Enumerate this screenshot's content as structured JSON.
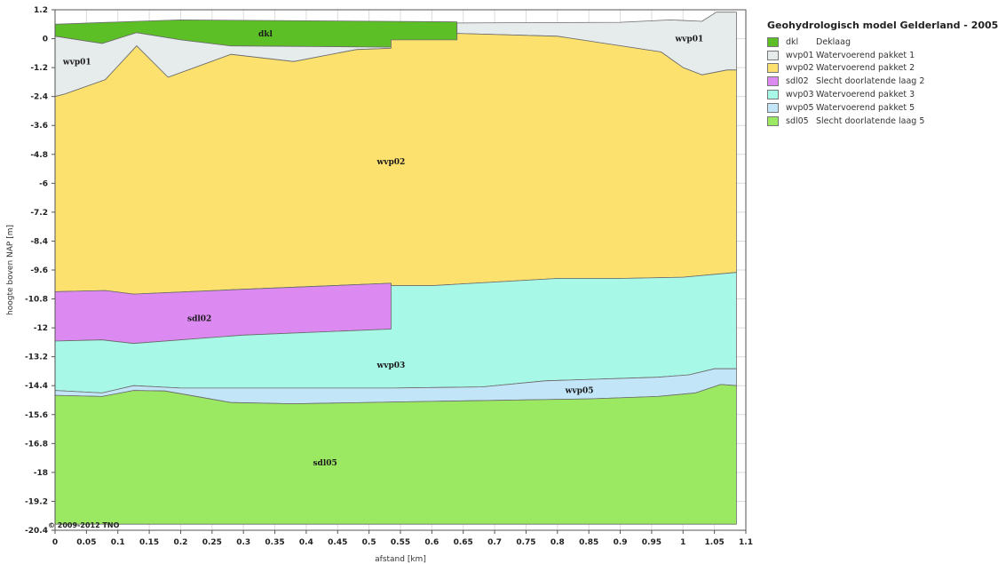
{
  "chart_data": {
    "type": "area",
    "title": "",
    "xlabel": "afstand [km]",
    "ylabel": "hoogte boven NAP [m]",
    "xlim": [
      0,
      1.1
    ],
    "ylim": [
      -20.4,
      1.2
    ],
    "grid": true,
    "x_ticks": [
      "0",
      "0.05",
      "0.1",
      "0.15",
      "0.2",
      "0.25",
      "0.3",
      "0.35",
      "0.4",
      "0.45",
      "0.5",
      "0.55",
      "0.6",
      "0.65",
      "0.7",
      "0.75",
      "0.8",
      "0.85",
      "0.9",
      "0.95",
      "1",
      "1.05",
      "1.1"
    ],
    "y_ticks": [
      "1.2",
      "0",
      "-1.2",
      "-2.4",
      "-3.6",
      "-4.8",
      "-6",
      "-7.2",
      "-8.4",
      "-9.6",
      "-10.8",
      "-12",
      "-13.2",
      "-14.4",
      "-15.6",
      "-16.8",
      "-18",
      "-19.2",
      "-20.4"
    ],
    "legend_position": "top-right, outside plot",
    "layers": [
      {
        "code": "dkl",
        "name": "Deklaag",
        "color": "#5cbf26",
        "label_at": [
          0.335,
          0.2
        ],
        "top": [
          [
            0,
            0.6
          ],
          [
            0.13,
            0.72
          ],
          [
            0.2,
            0.78
          ],
          [
            0.64,
            0.7
          ]
        ],
        "bottom": [
          [
            0,
            0.1
          ],
          [
            0.075,
            -0.2
          ],
          [
            0.13,
            0.25
          ],
          [
            0.2,
            -0.05
          ],
          [
            0.28,
            -0.3
          ],
          [
            0.535,
            -0.35
          ],
          [
            0.535,
            -0.05
          ],
          [
            0.64,
            -0.05
          ]
        ]
      },
      {
        "code": "wvp01",
        "name": "Watervoerend pakket 1",
        "color": "#e6ebec",
        "label_at": [
          0.035,
          -0.95
        ],
        "top": [
          [
            0,
            0.1
          ],
          [
            0.075,
            -0.2
          ],
          [
            0.13,
            0.25
          ],
          [
            0.2,
            -0.05
          ],
          [
            0.28,
            -0.3
          ],
          [
            0.535,
            -0.35
          ],
          [
            0.535,
            -0.05
          ],
          [
            0.64,
            -0.05
          ]
        ],
        "bottom": [
          [
            0,
            -2.4
          ],
          [
            0.015,
            -2.3
          ],
          [
            0.08,
            -1.7
          ],
          [
            0.13,
            -0.3
          ],
          [
            0.18,
            -1.6
          ],
          [
            0.28,
            -0.65
          ],
          [
            0.38,
            -0.95
          ],
          [
            0.48,
            -0.45
          ],
          [
            0.535,
            -0.4
          ],
          [
            0.535,
            -0.05
          ],
          [
            0.64,
            -0.05
          ]
        ]
      },
      {
        "code": "wvp01",
        "name": "Watervoerend pakket 1",
        "color": "#e6ebec",
        "label_at": [
          1.01,
          0.0
        ],
        "hide_legend": true,
        "top": [
          [
            0.64,
            0.65
          ],
          [
            0.9,
            0.68
          ],
          [
            0.98,
            0.78
          ],
          [
            1.03,
            0.72
          ],
          [
            1.053,
            1.1
          ],
          [
            1.085,
            1.1
          ]
        ],
        "bottom": [
          [
            0.64,
            0.22
          ],
          [
            0.8,
            0.1
          ],
          [
            0.965,
            -0.55
          ],
          [
            1.0,
            -1.2
          ],
          [
            1.03,
            -1.5
          ],
          [
            1.07,
            -1.3
          ],
          [
            1.085,
            -1.3
          ]
        ]
      },
      {
        "code": "wvp02",
        "name": "Watervoerend pakket 2",
        "color": "#fde16e",
        "label_at": [
          0.535,
          -5.1
        ],
        "top": [
          [
            0,
            -2.4
          ],
          [
            0.015,
            -2.3
          ],
          [
            0.08,
            -1.7
          ],
          [
            0.13,
            -0.3
          ],
          [
            0.18,
            -1.6
          ],
          [
            0.28,
            -0.65
          ],
          [
            0.38,
            -0.95
          ],
          [
            0.48,
            -0.45
          ],
          [
            0.535,
            -0.4
          ],
          [
            0.535,
            -0.05
          ],
          [
            0.64,
            -0.05
          ],
          [
            0.64,
            0.22
          ],
          [
            0.8,
            0.1
          ],
          [
            0.965,
            -0.55
          ],
          [
            1.0,
            -1.2
          ],
          [
            1.03,
            -1.5
          ],
          [
            1.07,
            -1.3
          ],
          [
            1.085,
            -1.3
          ]
        ],
        "bottom": [
          [
            0,
            -10.5
          ],
          [
            0.08,
            -10.45
          ],
          [
            0.125,
            -10.6
          ],
          [
            0.3,
            -10.4
          ],
          [
            0.535,
            -10.15
          ],
          [
            0.535,
            -10.25
          ],
          [
            0.6,
            -10.25
          ],
          [
            0.8,
            -9.95
          ],
          [
            0.9,
            -9.95
          ],
          [
            1.0,
            -9.9
          ],
          [
            1.085,
            -9.7
          ]
        ]
      },
      {
        "code": "sdl02",
        "name": "Slecht doorlatende laag 2",
        "color": "#dc8af2",
        "label_at": [
          0.23,
          -11.6
        ],
        "top": [
          [
            0,
            -10.5
          ],
          [
            0.08,
            -10.45
          ],
          [
            0.125,
            -10.6
          ],
          [
            0.3,
            -10.4
          ],
          [
            0.535,
            -10.15
          ]
        ],
        "bottom": [
          [
            0,
            -12.55
          ],
          [
            0.075,
            -12.5
          ],
          [
            0.125,
            -12.65
          ],
          [
            0.3,
            -12.3
          ],
          [
            0.535,
            -12.05
          ]
        ]
      },
      {
        "code": "wvp03",
        "name": "Watervoerend pakket 3",
        "color": "#a8f8e8",
        "label_at": [
          0.535,
          -13.55
        ],
        "top": [
          [
            0,
            -12.55
          ],
          [
            0.075,
            -12.5
          ],
          [
            0.125,
            -12.65
          ],
          [
            0.3,
            -12.3
          ],
          [
            0.535,
            -12.05
          ],
          [
            0.535,
            -10.25
          ],
          [
            0.6,
            -10.25
          ],
          [
            0.8,
            -9.95
          ],
          [
            0.9,
            -9.95
          ],
          [
            1.0,
            -9.9
          ],
          [
            1.085,
            -9.7
          ]
        ],
        "bottom": [
          [
            0,
            -14.6
          ],
          [
            0.075,
            -14.7
          ],
          [
            0.125,
            -14.4
          ],
          [
            0.2,
            -14.5
          ],
          [
            0.54,
            -14.5
          ],
          [
            0.68,
            -14.45
          ],
          [
            0.78,
            -14.2
          ],
          [
            0.96,
            -14.05
          ],
          [
            1.01,
            -13.95
          ],
          [
            1.05,
            -13.7
          ],
          [
            1.085,
            -13.7
          ]
        ]
      },
      {
        "code": "wvp05",
        "name": "Watervoerend pakket 5",
        "color": "#c2e6f8",
        "label_at": [
          0.835,
          -14.6
        ],
        "top": [
          [
            0,
            -14.6
          ],
          [
            0.075,
            -14.7
          ],
          [
            0.125,
            -14.4
          ],
          [
            0.2,
            -14.5
          ],
          [
            0.54,
            -14.5
          ],
          [
            0.68,
            -14.45
          ],
          [
            0.78,
            -14.2
          ],
          [
            0.96,
            -14.05
          ],
          [
            1.01,
            -13.95
          ],
          [
            1.05,
            -13.7
          ],
          [
            1.085,
            -13.7
          ]
        ],
        "bottom": [
          [
            0,
            -14.8
          ],
          [
            0.075,
            -14.85
          ],
          [
            0.125,
            -14.6
          ],
          [
            0.175,
            -14.62
          ],
          [
            0.28,
            -15.1
          ],
          [
            0.38,
            -15.15
          ],
          [
            0.6,
            -15.05
          ],
          [
            0.85,
            -14.95
          ],
          [
            0.96,
            -14.85
          ],
          [
            1.02,
            -14.7
          ],
          [
            1.06,
            -14.35
          ],
          [
            1.085,
            -14.4
          ]
        ]
      },
      {
        "code": "sdl05",
        "name": "Slecht doorlatende laag 5",
        "color": "#9be963",
        "label_at": [
          0.43,
          -17.6
        ],
        "top": [
          [
            0,
            -14.8
          ],
          [
            0.075,
            -14.85
          ],
          [
            0.125,
            -14.6
          ],
          [
            0.175,
            -14.62
          ],
          [
            0.28,
            -15.1
          ],
          [
            0.38,
            -15.15
          ],
          [
            0.6,
            -15.05
          ],
          [
            0.85,
            -14.95
          ],
          [
            0.96,
            -14.85
          ],
          [
            1.02,
            -14.7
          ],
          [
            1.06,
            -14.35
          ],
          [
            1.085,
            -14.4
          ]
        ],
        "bottom": [
          [
            0,
            -20.15
          ],
          [
            1.085,
            -20.15
          ]
        ]
      }
    ]
  },
  "legend": {
    "title": "Geohydrologisch model Gelderland - 2005",
    "items": [
      {
        "code": "dkl",
        "name": "Deklaag",
        "color": "#5cbf26"
      },
      {
        "code": "wvp01",
        "name": "Watervoerend pakket 1",
        "color": "#e6ebec"
      },
      {
        "code": "wvp02",
        "name": "Watervoerend pakket 2",
        "color": "#fde16e"
      },
      {
        "code": "sdl02",
        "name": "Slecht doorlatende laag 2",
        "color": "#dc8af2"
      },
      {
        "code": "wvp03",
        "name": "Watervoerend pakket 3",
        "color": "#a8f8e8"
      },
      {
        "code": "wvp05",
        "name": "Watervoerend pakket 5",
        "color": "#c2e6f8"
      },
      {
        "code": "sdl05",
        "name": "Slecht doorlatende laag 5",
        "color": "#9be963"
      }
    ]
  },
  "copyright": "© 2009-2012 TNO"
}
